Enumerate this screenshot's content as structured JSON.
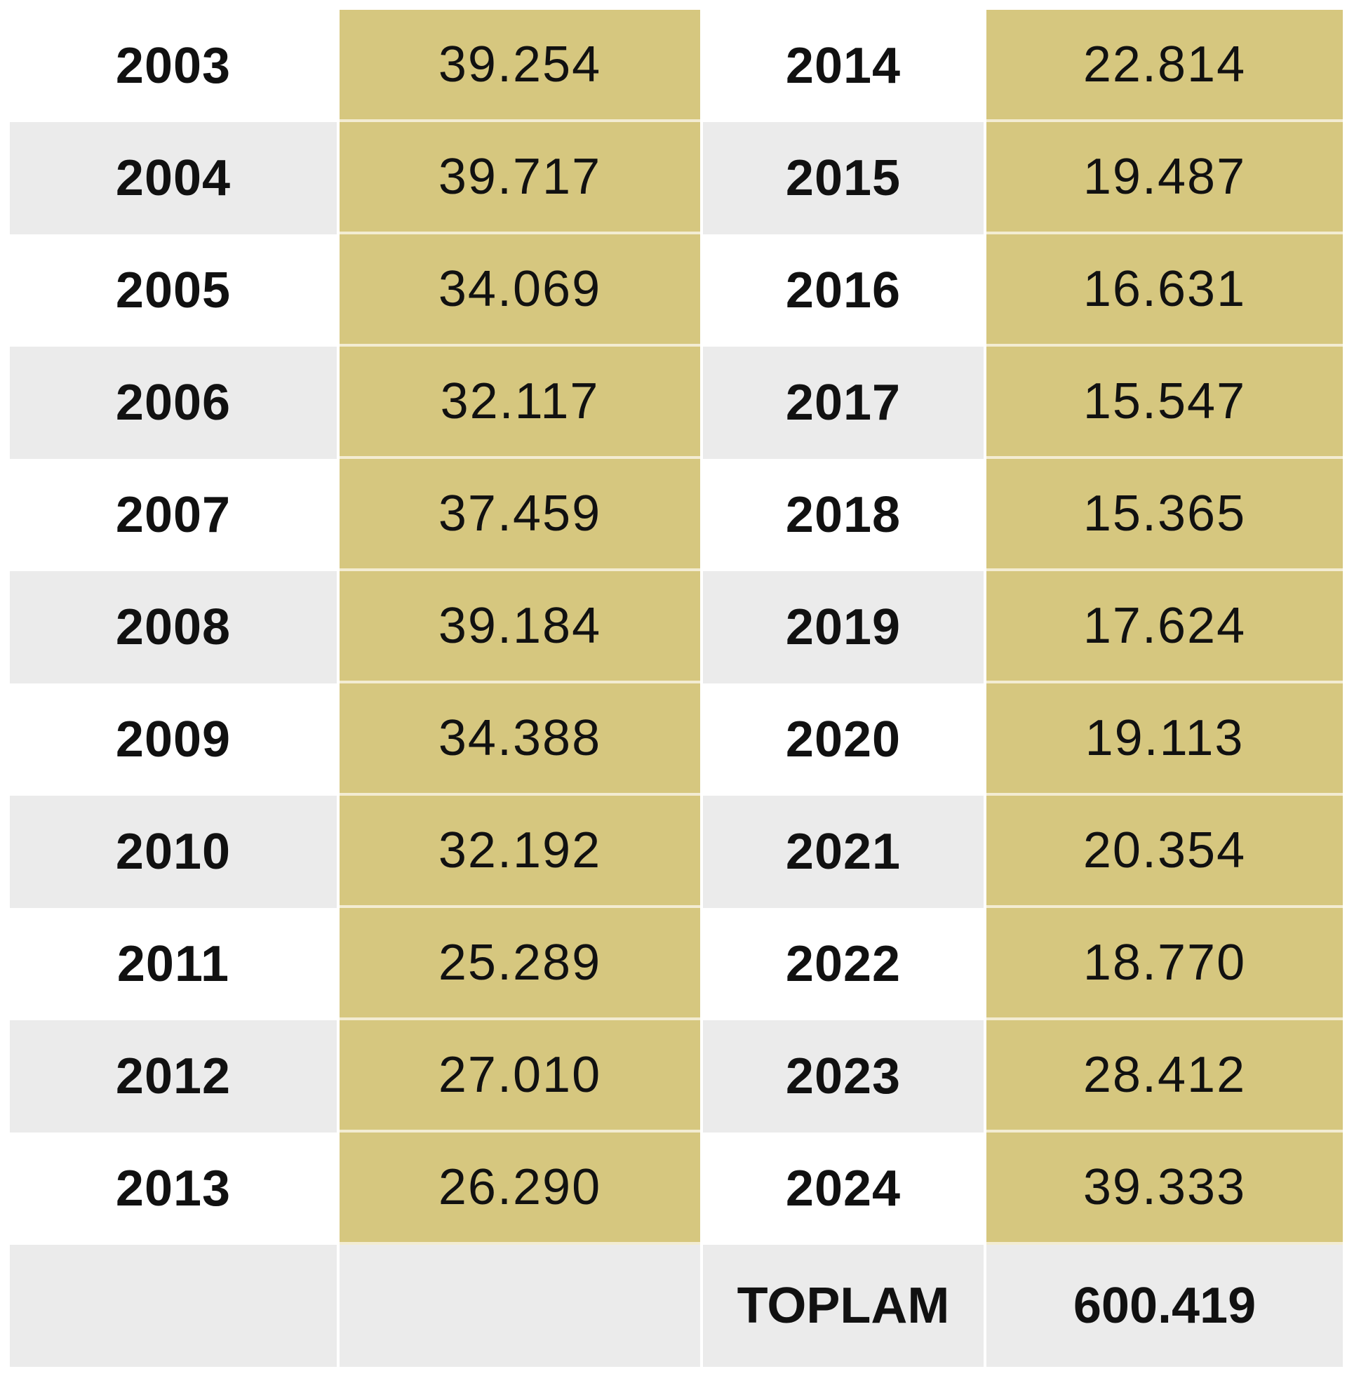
{
  "colors": {
    "value_fill": "#d6c77f",
    "stripe_fill": "#ebebeb",
    "background": "#ffffff"
  },
  "rows": [
    {
      "left_year": "2003",
      "left_value": "39.254",
      "right_year": "2014",
      "right_value": "22.814"
    },
    {
      "left_year": "2004",
      "left_value": "39.717",
      "right_year": "2015",
      "right_value": "19.487"
    },
    {
      "left_year": "2005",
      "left_value": "34.069",
      "right_year": "2016",
      "right_value": "16.631"
    },
    {
      "left_year": "2006",
      "left_value": "32.117",
      "right_year": "2017",
      "right_value": "15.547"
    },
    {
      "left_year": "2007",
      "left_value": "37.459",
      "right_year": "2018",
      "right_value": "15.365"
    },
    {
      "left_year": "2008",
      "left_value": "39.184",
      "right_year": "2019",
      "right_value": "17.624"
    },
    {
      "left_year": "2009",
      "left_value": "34.388",
      "right_year": "2020",
      "right_value": "19.113"
    },
    {
      "left_year": "2010",
      "left_value": "32.192",
      "right_year": "2021",
      "right_value": "20.354"
    },
    {
      "left_year": "2011",
      "left_value": "25.289",
      "right_year": "2022",
      "right_value": "18.770"
    },
    {
      "left_year": "2012",
      "left_value": "27.010",
      "right_year": "2023",
      "right_value": "28.412"
    },
    {
      "left_year": "2013",
      "left_value": "26.290",
      "right_year": "2024",
      "right_value": "39.333"
    }
  ],
  "total": {
    "label": "TOPLAM",
    "value": "600.419"
  }
}
